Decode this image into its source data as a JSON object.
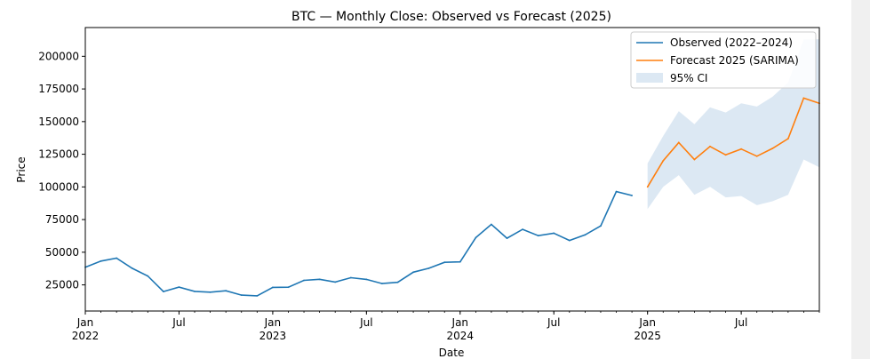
{
  "chart_data": {
    "type": "line",
    "title": "BTC — Monthly Close: Observed vs Forecast (2025)",
    "xlabel": "Date",
    "ylabel": "Price",
    "xlim": [
      "2022-01",
      "2025-12"
    ],
    "ylim": [
      5000,
      222000
    ],
    "grid": false,
    "legend_position": "top-right",
    "y_ticks": [
      25000,
      50000,
      75000,
      100000,
      125000,
      150000,
      175000,
      200000
    ],
    "x_ticks": [
      {
        "date": "2022-01",
        "label": "Jan",
        "sublabel": "2022"
      },
      {
        "date": "2022-07",
        "label": "Jul",
        "sublabel": ""
      },
      {
        "date": "2023-01",
        "label": "Jan",
        "sublabel": "2023"
      },
      {
        "date": "2023-07",
        "label": "Jul",
        "sublabel": ""
      },
      {
        "date": "2024-01",
        "label": "Jan",
        "sublabel": "2024"
      },
      {
        "date": "2024-07",
        "label": "Jul",
        "sublabel": ""
      },
      {
        "date": "2025-01",
        "label": "Jan",
        "sublabel": "2025"
      },
      {
        "date": "2025-07",
        "label": "Jul",
        "sublabel": ""
      }
    ],
    "series": [
      {
        "name": "Observed (2022–2024)",
        "color": "#1f77b4",
        "x": [
          "2022-01",
          "2022-02",
          "2022-03",
          "2022-04",
          "2022-05",
          "2022-06",
          "2022-07",
          "2022-08",
          "2022-09",
          "2022-10",
          "2022-11",
          "2022-12",
          "2023-01",
          "2023-02",
          "2023-03",
          "2023-04",
          "2023-05",
          "2023-06",
          "2023-07",
          "2023-08",
          "2023-09",
          "2023-10",
          "2023-11",
          "2023-12",
          "2024-01",
          "2024-02",
          "2024-03",
          "2024-04",
          "2024-05",
          "2024-06",
          "2024-07",
          "2024-08",
          "2024-09",
          "2024-10",
          "2024-11",
          "2024-12"
        ],
        "values": [
          38500,
          43200,
          45500,
          37700,
          31800,
          19900,
          23300,
          20000,
          19400,
          20500,
          17200,
          16600,
          23100,
          23200,
          28500,
          29300,
          27200,
          30500,
          29200,
          26000,
          27000,
          34700,
          37700,
          42300,
          42600,
          61200,
          71300,
          60700,
          67500,
          62700,
          64600,
          59000,
          63300,
          70200,
          96400,
          93400
        ]
      },
      {
        "name": "Forecast 2025 (SARIMA)",
        "color": "#ff7f0e",
        "x": [
          "2025-01",
          "2025-02",
          "2025-03",
          "2025-04",
          "2025-05",
          "2025-06",
          "2025-07",
          "2025-08",
          "2025-09",
          "2025-10",
          "2025-11",
          "2025-12"
        ],
        "values": [
          100000,
          120000,
          134000,
          121000,
          131000,
          124500,
          129000,
          123500,
          129500,
          137000,
          168000,
          164000
        ]
      },
      {
        "name": "95% CI",
        "color": "#dce8f3",
        "x": [
          "2025-01",
          "2025-02",
          "2025-03",
          "2025-04",
          "2025-05",
          "2025-06",
          "2025-07",
          "2025-08",
          "2025-09",
          "2025-10",
          "2025-11",
          "2025-12"
        ],
        "lower": [
          83000,
          100000,
          109000,
          94000,
          100000,
          92000,
          93000,
          86000,
          89000,
          94000,
          121000,
          115000
        ],
        "upper": [
          118000,
          139000,
          158000,
          148000,
          161000,
          157000,
          164000,
          161500,
          169000,
          180000,
          213000,
          213000
        ]
      }
    ]
  }
}
